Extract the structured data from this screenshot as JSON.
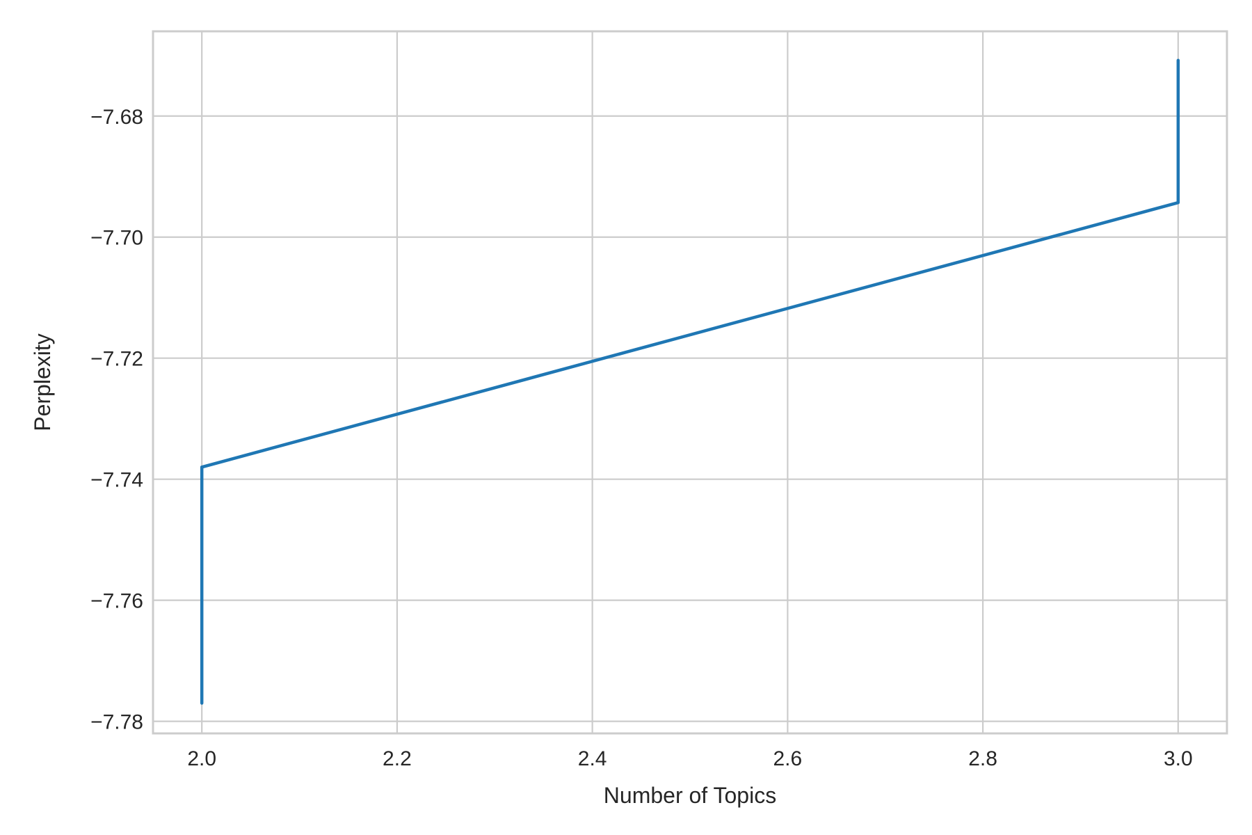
{
  "chart_data": {
    "type": "line",
    "title": "",
    "xlabel": "Number of Topics",
    "ylabel": "Perplexity",
    "xlim": [
      1.95,
      3.05
    ],
    "ylim": [
      -7.782,
      -7.666
    ],
    "x_ticks": [
      2.0,
      2.2,
      2.4,
      2.6,
      2.8,
      3.0
    ],
    "x_tick_labels": [
      "2.0",
      "2.2",
      "2.4",
      "2.6",
      "2.8",
      "3.0"
    ],
    "y_ticks": [
      -7.68,
      -7.7,
      -7.72,
      -7.74,
      -7.76,
      -7.78
    ],
    "y_tick_labels": [
      "−7.68",
      "−7.70",
      "−7.72",
      "−7.74",
      "−7.76",
      "−7.78"
    ],
    "grid": true,
    "series": [
      {
        "color": "#1f77b4",
        "x": [
          2.0,
          2.0,
          3.0,
          3.0
        ],
        "y": [
          -7.777,
          -7.738,
          -7.6943,
          -7.6708
        ]
      }
    ]
  }
}
